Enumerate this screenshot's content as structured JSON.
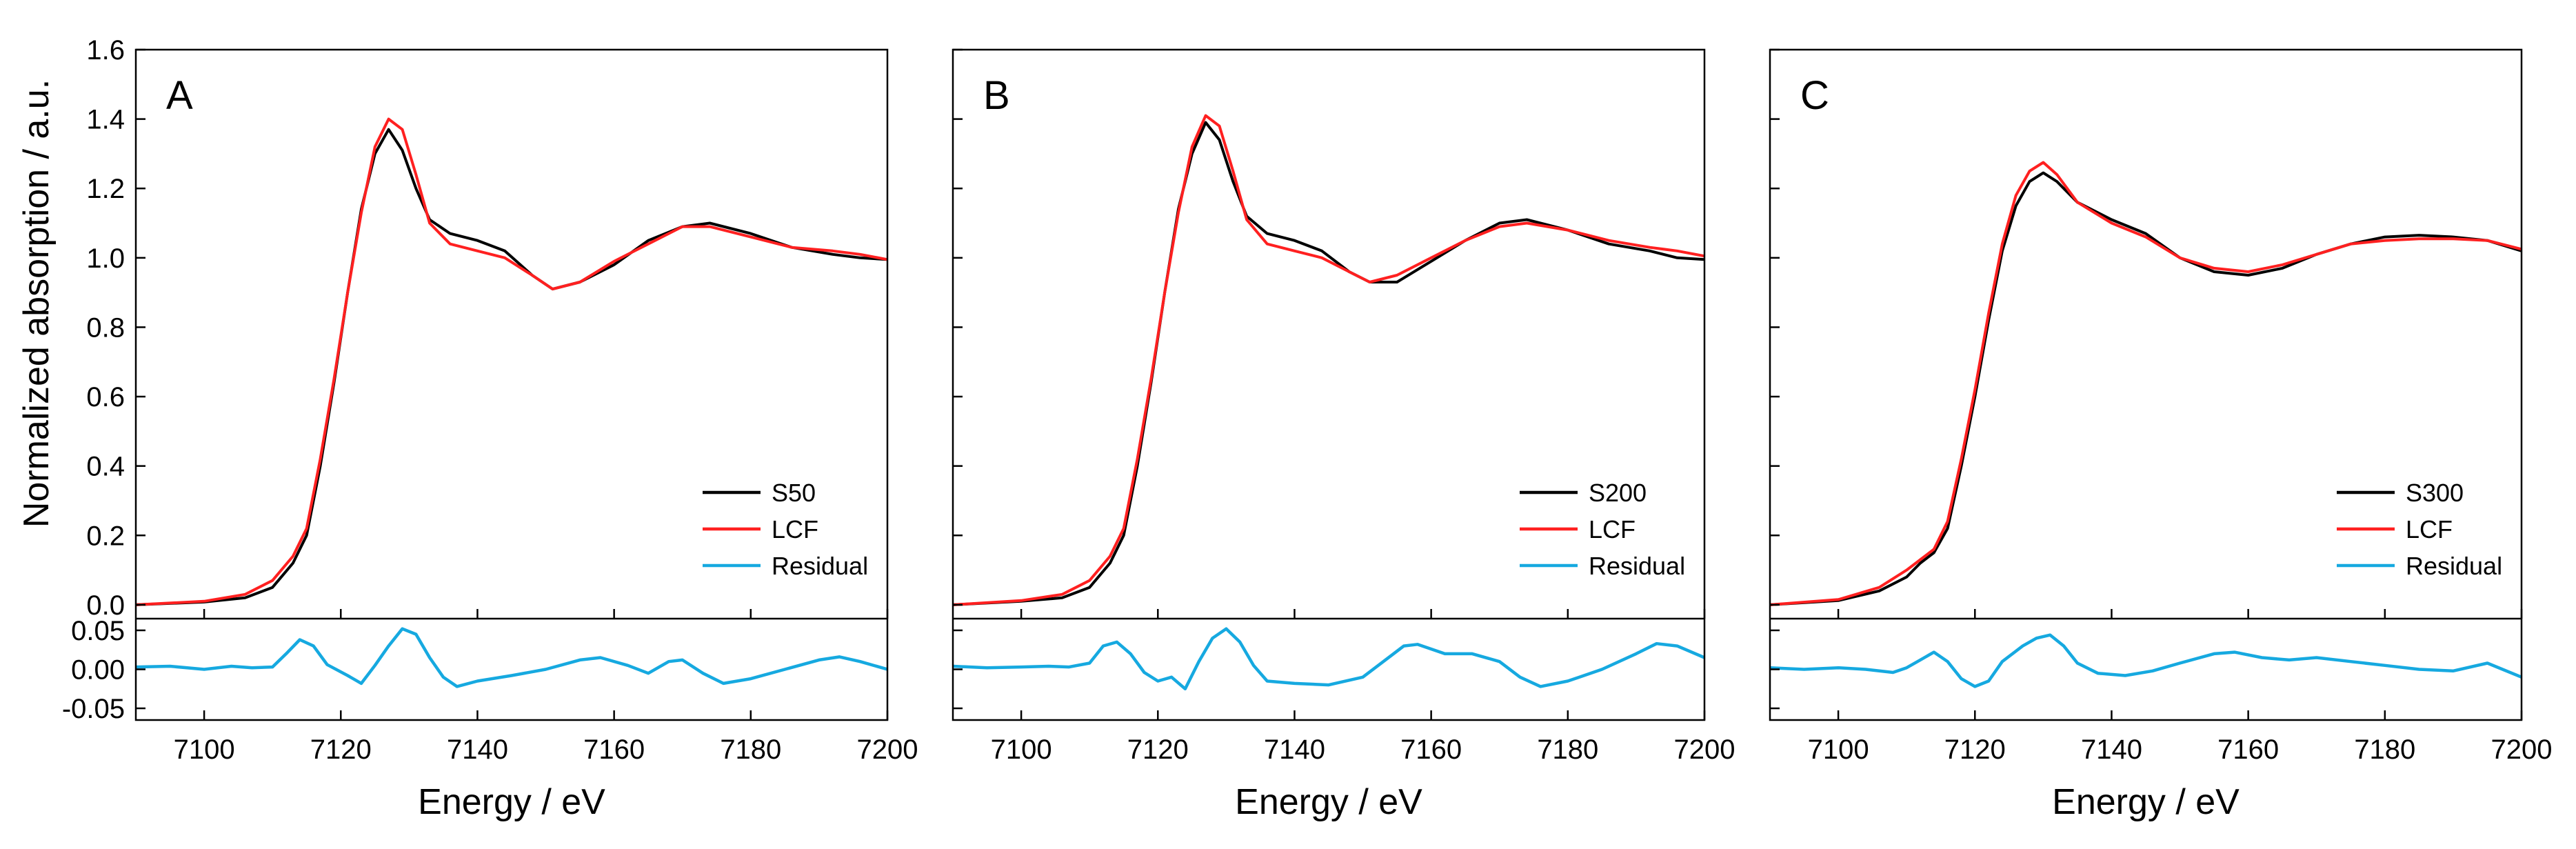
{
  "chart_data": {
    "type": "line",
    "ylabel": "Normalized absorption / a.u.",
    "xlabel": "Energy / eV",
    "x_ticks": [
      7100,
      7120,
      7140,
      7160,
      7180,
      7200
    ],
    "y_ticks_main": [
      0.0,
      0.2,
      0.4,
      0.6,
      0.8,
      1.0,
      1.2,
      1.4,
      1.6
    ],
    "y_ticks_main_labels": [
      "0.0",
      "0.2",
      "0.4",
      "0.6",
      "0.8",
      "1.0",
      "1.2",
      "1.4",
      "1.6"
    ],
    "y_ticks_residual": [
      0.05,
      0.0,
      -0.05
    ],
    "y_ticks_residual_labels": [
      "0.05",
      "0.00",
      "-0.05"
    ],
    "xlim": [
      7090,
      7200
    ],
    "ylim_main": [
      -0.04,
      1.6
    ],
    "ylim_residual": [
      -0.065,
      0.065
    ],
    "colors": {
      "sample": "#000000",
      "lcf": "#ff2020",
      "residual": "#16a9e0"
    },
    "panels": [
      {
        "letter": "A",
        "legend": [
          "S50",
          "LCF",
          "Residual"
        ],
        "sample": [
          [
            7090,
            0.0
          ],
          [
            7100,
            0.008
          ],
          [
            7106,
            0.02
          ],
          [
            7110,
            0.05
          ],
          [
            7113,
            0.12
          ],
          [
            7115,
            0.2
          ],
          [
            7117,
            0.4
          ],
          [
            7119,
            0.64
          ],
          [
            7121,
            0.9
          ],
          [
            7123,
            1.14
          ],
          [
            7125,
            1.3
          ],
          [
            7127,
            1.37
          ],
          [
            7129,
            1.31
          ],
          [
            7131,
            1.2
          ],
          [
            7133,
            1.11
          ],
          [
            7136,
            1.07
          ],
          [
            7140,
            1.05
          ],
          [
            7144,
            1.02
          ],
          [
            7148,
            0.95
          ],
          [
            7151,
            0.91
          ],
          [
            7155,
            0.93
          ],
          [
            7160,
            0.98
          ],
          [
            7165,
            1.05
          ],
          [
            7170,
            1.09
          ],
          [
            7174,
            1.1
          ],
          [
            7180,
            1.07
          ],
          [
            7186,
            1.03
          ],
          [
            7192,
            1.01
          ],
          [
            7196,
            1.0
          ],
          [
            7200,
            0.995
          ]
        ],
        "lcf": [
          [
            7090,
            0.0
          ],
          [
            7100,
            0.01
          ],
          [
            7106,
            0.03
          ],
          [
            7110,
            0.07
          ],
          [
            7113,
            0.14
          ],
          [
            7115,
            0.22
          ],
          [
            7117,
            0.42
          ],
          [
            7119,
            0.65
          ],
          [
            7121,
            0.9
          ],
          [
            7123,
            1.13
          ],
          [
            7125,
            1.32
          ],
          [
            7127,
            1.4
          ],
          [
            7129,
            1.37
          ],
          [
            7131,
            1.24
          ],
          [
            7133,
            1.1
          ],
          [
            7136,
            1.04
          ],
          [
            7140,
            1.02
          ],
          [
            7144,
            1.0
          ],
          [
            7148,
            0.95
          ],
          [
            7151,
            0.91
          ],
          [
            7155,
            0.93
          ],
          [
            7160,
            0.99
          ],
          [
            7165,
            1.04
          ],
          [
            7170,
            1.09
          ],
          [
            7174,
            1.09
          ],
          [
            7180,
            1.06
          ],
          [
            7186,
            1.03
          ],
          [
            7192,
            1.02
          ],
          [
            7196,
            1.01
          ],
          [
            7200,
            0.995
          ]
        ],
        "residual": [
          [
            7090,
            0.003
          ],
          [
            7095,
            0.004
          ],
          [
            7100,
            0.0
          ],
          [
            7104,
            0.004
          ],
          [
            7107,
            0.002
          ],
          [
            7110,
            0.003
          ],
          [
            7112,
            0.02
          ],
          [
            7114,
            0.038
          ],
          [
            7116,
            0.03
          ],
          [
            7118,
            0.006
          ],
          [
            7121,
            -0.008
          ],
          [
            7123,
            -0.018
          ],
          [
            7125,
            0.005
          ],
          [
            7127,
            0.03
          ],
          [
            7129,
            0.052
          ],
          [
            7131,
            0.045
          ],
          [
            7133,
            0.015
          ],
          [
            7135,
            -0.01
          ],
          [
            7137,
            -0.022
          ],
          [
            7140,
            -0.015
          ],
          [
            7145,
            -0.008
          ],
          [
            7150,
            0.0
          ],
          [
            7155,
            0.012
          ],
          [
            7158,
            0.015
          ],
          [
            7162,
            0.005
          ],
          [
            7165,
            -0.005
          ],
          [
            7168,
            0.01
          ],
          [
            7170,
            0.012
          ],
          [
            7173,
            -0.005
          ],
          [
            7176,
            -0.018
          ],
          [
            7180,
            -0.012
          ],
          [
            7185,
            0.0
          ],
          [
            7190,
            0.012
          ],
          [
            7193,
            0.016
          ],
          [
            7196,
            0.01
          ],
          [
            7200,
            0.0
          ]
        ]
      },
      {
        "letter": "B",
        "legend": [
          "S200",
          "LCF",
          "Residual"
        ],
        "sample": [
          [
            7090,
            0.0
          ],
          [
            7100,
            0.01
          ],
          [
            7106,
            0.02
          ],
          [
            7110,
            0.05
          ],
          [
            7113,
            0.12
          ],
          [
            7115,
            0.2
          ],
          [
            7117,
            0.4
          ],
          [
            7119,
            0.64
          ],
          [
            7121,
            0.9
          ],
          [
            7123,
            1.14
          ],
          [
            7125,
            1.3
          ],
          [
            7127,
            1.39
          ],
          [
            7129,
            1.34
          ],
          [
            7131,
            1.22
          ],
          [
            7133,
            1.12
          ],
          [
            7136,
            1.07
          ],
          [
            7140,
            1.05
          ],
          [
            7144,
            1.02
          ],
          [
            7148,
            0.96
          ],
          [
            7151,
            0.93
          ],
          [
            7155,
            0.93
          ],
          [
            7160,
            0.99
          ],
          [
            7165,
            1.05
          ],
          [
            7170,
            1.1
          ],
          [
            7174,
            1.11
          ],
          [
            7180,
            1.08
          ],
          [
            7186,
            1.04
          ],
          [
            7192,
            1.02
          ],
          [
            7196,
            1.0
          ],
          [
            7200,
            0.995
          ]
        ],
        "lcf": [
          [
            7090,
            0.0
          ],
          [
            7100,
            0.012
          ],
          [
            7106,
            0.03
          ],
          [
            7110,
            0.07
          ],
          [
            7113,
            0.14
          ],
          [
            7115,
            0.22
          ],
          [
            7117,
            0.42
          ],
          [
            7119,
            0.65
          ],
          [
            7121,
            0.9
          ],
          [
            7123,
            1.13
          ],
          [
            7125,
            1.32
          ],
          [
            7127,
            1.41
          ],
          [
            7129,
            1.38
          ],
          [
            7131,
            1.25
          ],
          [
            7133,
            1.11
          ],
          [
            7136,
            1.04
          ],
          [
            7140,
            1.02
          ],
          [
            7144,
            1.0
          ],
          [
            7148,
            0.96
          ],
          [
            7151,
            0.93
          ],
          [
            7155,
            0.95
          ],
          [
            7160,
            1.0
          ],
          [
            7165,
            1.05
          ],
          [
            7170,
            1.09
          ],
          [
            7174,
            1.1
          ],
          [
            7180,
            1.08
          ],
          [
            7186,
            1.05
          ],
          [
            7192,
            1.03
          ],
          [
            7196,
            1.02
          ],
          [
            7200,
            1.005
          ]
        ],
        "residual": [
          [
            7090,
            0.004
          ],
          [
            7095,
            0.002
          ],
          [
            7100,
            0.003
          ],
          [
            7104,
            0.004
          ],
          [
            7107,
            0.003
          ],
          [
            7110,
            0.008
          ],
          [
            7112,
            0.03
          ],
          [
            7114,
            0.035
          ],
          [
            7116,
            0.02
          ],
          [
            7118,
            -0.004
          ],
          [
            7120,
            -0.015
          ],
          [
            7122,
            -0.01
          ],
          [
            7124,
            -0.025
          ],
          [
            7126,
            0.01
          ],
          [
            7128,
            0.04
          ],
          [
            7130,
            0.052
          ],
          [
            7132,
            0.035
          ],
          [
            7134,
            0.005
          ],
          [
            7136,
            -0.015
          ],
          [
            7140,
            -0.018
          ],
          [
            7145,
            -0.02
          ],
          [
            7150,
            -0.01
          ],
          [
            7153,
            0.01
          ],
          [
            7156,
            0.03
          ],
          [
            7158,
            0.032
          ],
          [
            7162,
            0.02
          ],
          [
            7166,
            0.02
          ],
          [
            7170,
            0.01
          ],
          [
            7173,
            -0.01
          ],
          [
            7176,
            -0.022
          ],
          [
            7180,
            -0.015
          ],
          [
            7185,
            0.0
          ],
          [
            7190,
            0.02
          ],
          [
            7193,
            0.033
          ],
          [
            7196,
            0.03
          ],
          [
            7200,
            0.015
          ]
        ]
      },
      {
        "letter": "C",
        "legend": [
          "S300",
          "LCF",
          "Residual"
        ],
        "sample": [
          [
            7090,
            0.0
          ],
          [
            7100,
            0.012
          ],
          [
            7106,
            0.04
          ],
          [
            7110,
            0.08
          ],
          [
            7112,
            0.12
          ],
          [
            7114,
            0.15
          ],
          [
            7116,
            0.22
          ],
          [
            7118,
            0.4
          ],
          [
            7120,
            0.6
          ],
          [
            7122,
            0.82
          ],
          [
            7124,
            1.02
          ],
          [
            7126,
            1.15
          ],
          [
            7128,
            1.22
          ],
          [
            7130,
            1.245
          ],
          [
            7132,
            1.22
          ],
          [
            7135,
            1.16
          ],
          [
            7140,
            1.11
          ],
          [
            7145,
            1.07
          ],
          [
            7150,
            1.0
          ],
          [
            7155,
            0.96
          ],
          [
            7160,
            0.95
          ],
          [
            7165,
            0.97
          ],
          [
            7170,
            1.01
          ],
          [
            7175,
            1.04
          ],
          [
            7180,
            1.06
          ],
          [
            7185,
            1.065
          ],
          [
            7190,
            1.06
          ],
          [
            7195,
            1.05
          ],
          [
            7200,
            1.02
          ]
        ],
        "lcf": [
          [
            7090,
            0.0
          ],
          [
            7100,
            0.015
          ],
          [
            7106,
            0.05
          ],
          [
            7110,
            0.1
          ],
          [
            7112,
            0.13
          ],
          [
            7114,
            0.16
          ],
          [
            7116,
            0.24
          ],
          [
            7118,
            0.42
          ],
          [
            7120,
            0.62
          ],
          [
            7122,
            0.84
          ],
          [
            7124,
            1.04
          ],
          [
            7126,
            1.18
          ],
          [
            7128,
            1.25
          ],
          [
            7130,
            1.275
          ],
          [
            7132,
            1.24
          ],
          [
            7135,
            1.16
          ],
          [
            7140,
            1.1
          ],
          [
            7145,
            1.06
          ],
          [
            7150,
            1.0
          ],
          [
            7155,
            0.97
          ],
          [
            7160,
            0.96
          ],
          [
            7165,
            0.98
          ],
          [
            7170,
            1.01
          ],
          [
            7175,
            1.04
          ],
          [
            7180,
            1.05
          ],
          [
            7185,
            1.055
          ],
          [
            7190,
            1.055
          ],
          [
            7195,
            1.05
          ],
          [
            7200,
            1.025
          ]
        ],
        "residual": [
          [
            7090,
            0.002
          ],
          [
            7095,
            0.0
          ],
          [
            7100,
            0.002
          ],
          [
            7104,
            0.0
          ],
          [
            7108,
            -0.004
          ],
          [
            7110,
            0.002
          ],
          [
            7112,
            0.012
          ],
          [
            7114,
            0.022
          ],
          [
            7116,
            0.01
          ],
          [
            7118,
            -0.012
          ],
          [
            7120,
            -0.022
          ],
          [
            7122,
            -0.015
          ],
          [
            7124,
            0.01
          ],
          [
            7127,
            0.03
          ],
          [
            7129,
            0.04
          ],
          [
            7131,
            0.044
          ],
          [
            7133,
            0.03
          ],
          [
            7135,
            0.008
          ],
          [
            7138,
            -0.005
          ],
          [
            7142,
            -0.008
          ],
          [
            7146,
            -0.002
          ],
          [
            7150,
            0.008
          ],
          [
            7155,
            0.02
          ],
          [
            7158,
            0.022
          ],
          [
            7162,
            0.015
          ],
          [
            7166,
            0.012
          ],
          [
            7170,
            0.015
          ],
          [
            7175,
            0.01
          ],
          [
            7180,
            0.005
          ],
          [
            7185,
            0.0
          ],
          [
            7190,
            -0.002
          ],
          [
            7195,
            0.008
          ],
          [
            7200,
            -0.01
          ]
        ]
      }
    ]
  }
}
